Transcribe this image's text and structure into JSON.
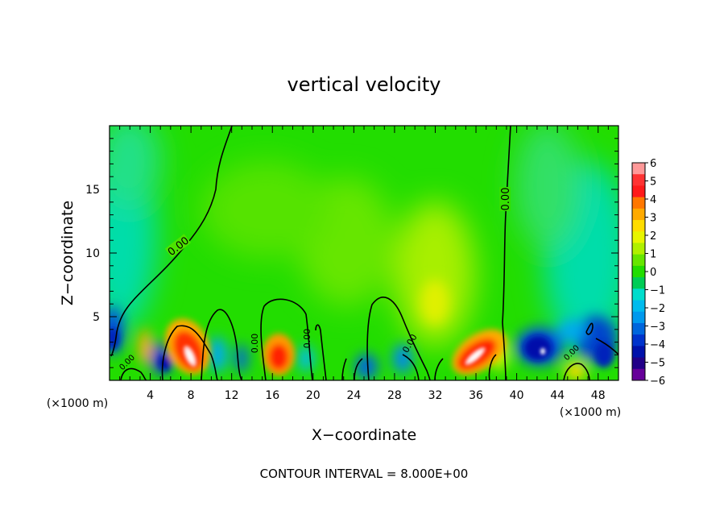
{
  "chart_data": {
    "type": "heatmap",
    "title": "vertical velocity",
    "xlabel": "X−coordinate",
    "ylabel": "Z−coordinate",
    "x_unit_left": "(×1000 m)",
    "x_unit_right": "(×1000 m)",
    "footer": "CONTOUR INTERVAL = 8.000E+00",
    "xlim": [
      0,
      50
    ],
    "ylim": [
      0,
      20
    ],
    "x_ticks": [
      4,
      8,
      12,
      16,
      20,
      24,
      28,
      32,
      36,
      40,
      44,
      48
    ],
    "y_ticks": [
      5,
      10,
      15
    ],
    "colorbar": {
      "min": -6,
      "max": 6,
      "labels": [
        "6",
        "5",
        "4",
        "3",
        "2",
        "1",
        "0",
        "−1",
        "−2",
        "−3",
        "−4",
        "−5",
        "−6"
      ],
      "colors": [
        "#ff9999",
        "#ff3333",
        "#ff1a1a",
        "#ff7700",
        "#ffaa00",
        "#ffdd00",
        "#e8f500",
        "#b0f000",
        "#66e600",
        "#22dd00",
        "#00cc55",
        "#00ddcc",
        "#00bbee",
        "#0099ee",
        "#0066dd",
        "#0033cc",
        "#0011aa",
        "#220088",
        "#660099"
      ]
    },
    "contour_labels": [
      "0.00",
      "0.00",
      "0.00",
      "0.00",
      "0.00",
      "0.00",
      "0.00"
    ],
    "cells": [
      {
        "x": 8,
        "z": 1.8,
        "value": 6
      },
      {
        "x": 35,
        "z": 2.2,
        "value": 6
      },
      {
        "x": 17,
        "z": 1.7,
        "value": 4
      },
      {
        "x": 42,
        "z": 2.4,
        "value": -5
      },
      {
        "x": 5,
        "z": 1.4,
        "value": -5
      },
      {
        "x": 0.5,
        "z": 3.5,
        "value": -4
      },
      {
        "x": 49,
        "z": 2.0,
        "value": -5
      },
      {
        "x": 32,
        "z": 5.5,
        "value": 2
      },
      {
        "x": 31,
        "z": 8.0,
        "value": 1
      },
      {
        "x": 3,
        "z": 8.0,
        "value": -2
      }
    ]
  }
}
